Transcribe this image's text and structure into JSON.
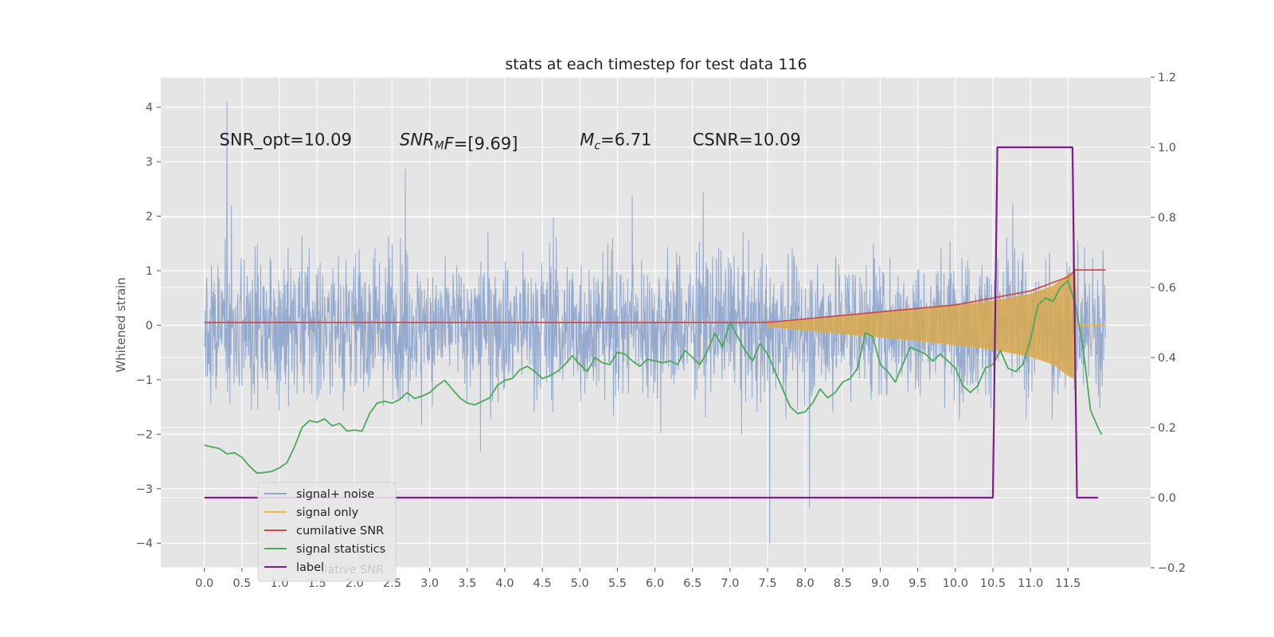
{
  "chart_data": {
    "type": "line",
    "title": "stats at each timestep for test data 116",
    "ylabel": "Whitened strain",
    "ylabel_right": "",
    "xlim": [
      -0.58,
      12.6
    ],
    "ylim": [
      -4.45,
      4.55
    ],
    "ylim_right": [
      -0.2,
      1.2
    ],
    "x_ticks": [
      "0.0",
      "0.5",
      "1.0",
      "1.5",
      "2.0",
      "2.5",
      "3.0",
      "3.5",
      "4.0",
      "4.5",
      "5.0",
      "5.5",
      "6.0",
      "6.5",
      "7.0",
      "7.5",
      "8.0",
      "8.5",
      "9.0",
      "9.5",
      "10.0",
      "10.5",
      "11.0",
      "11.5"
    ],
    "y_ticks": [
      "4",
      "3",
      "2",
      "1",
      "0",
      "−1",
      "−2",
      "−3",
      "−4"
    ],
    "y_ticks_right": [
      "1.2",
      "1.0",
      "0.8",
      "0.6",
      "0.4",
      "0.2",
      "0.0",
      "−0.2"
    ],
    "grid": true,
    "legend_placement": "lower-left",
    "annotations": [
      {
        "text": "SNR_opt=10.09",
        "x": 0.2,
        "y": 3.3
      },
      {
        "text": "SNR_M F=[9.69]",
        "x": 2.6,
        "y": 3.3
      },
      {
        "text": "M_c=6.71",
        "x": 5.0,
        "y": 3.3
      },
      {
        "text": "CSNR=10.09",
        "x": 6.5,
        "y": 3.3
      }
    ],
    "series": [
      {
        "name": "signal+ noise",
        "color": "#8fa5cc",
        "description": "whitened noise, amplitude ~±2 with spikes to ±4",
        "approx_envelope": {
          "upper": 1.9,
          "lower": -1.9,
          "max": 4.1,
          "min": -4.0
        }
      },
      {
        "name": "signal only",
        "color": "#e8b84a",
        "envelope_x": [
          7.5,
          8.0,
          8.5,
          9.0,
          9.5,
          10.0,
          10.5,
          11.0,
          11.3,
          11.5,
          11.6
        ],
        "envelope_amp": [
          0.02,
          0.06,
          0.1,
          0.14,
          0.18,
          0.23,
          0.28,
          0.36,
          0.45,
          0.58,
          0.62
        ]
      },
      {
        "name": "cumilative SNR",
        "color": "#cc4c4c",
        "axis": "right",
        "x": [
          0.0,
          7.5,
          8.0,
          8.5,
          9.0,
          9.5,
          10.0,
          10.5,
          11.0,
          11.5,
          11.6,
          12.0
        ],
        "y": [
          0.5,
          0.5,
          0.51,
          0.52,
          0.53,
          0.54,
          0.55,
          0.57,
          0.59,
          0.63,
          0.65,
          0.65
        ]
      },
      {
        "name": "signal statistics",
        "color": "#4aa95c",
        "axis": "right",
        "x": [
          0.0,
          0.1,
          0.2,
          0.3,
          0.4,
          0.5,
          0.6,
          0.7,
          0.8,
          0.9,
          1.0,
          1.1,
          1.2,
          1.3,
          1.4,
          1.5,
          1.6,
          1.7,
          1.8,
          1.9,
          2.0,
          2.1,
          2.2,
          2.3,
          2.4,
          2.5,
          2.6,
          2.7,
          2.8,
          2.9,
          3.0,
          3.1,
          3.2,
          3.3,
          3.4,
          3.5,
          3.6,
          3.7,
          3.8,
          3.9,
          4.0,
          4.1,
          4.2,
          4.3,
          4.4,
          4.5,
          4.6,
          4.7,
          4.8,
          4.9,
          5.0,
          5.1,
          5.2,
          5.3,
          5.4,
          5.5,
          5.6,
          5.7,
          5.8,
          5.9,
          6.0,
          6.1,
          6.2,
          6.3,
          6.4,
          6.5,
          6.6,
          6.7,
          6.8,
          6.9,
          7.0,
          7.1,
          7.2,
          7.3,
          7.4,
          7.5,
          7.6,
          7.7,
          7.8,
          7.9,
          8.0,
          8.1,
          8.2,
          8.3,
          8.4,
          8.5,
          8.6,
          8.7,
          8.8,
          8.9,
          9.0,
          9.1,
          9.2,
          9.3,
          9.4,
          9.5,
          9.6,
          9.7,
          9.8,
          9.9,
          10.0,
          10.1,
          10.2,
          10.3,
          10.4,
          10.5,
          10.6,
          10.7,
          10.8,
          10.9,
          11.0,
          11.1,
          11.2,
          11.3,
          11.4,
          11.5,
          11.6,
          11.7,
          11.8,
          11.9,
          11.95
        ],
        "y": [
          0.15,
          0.145,
          0.14,
          0.125,
          0.128,
          0.115,
          0.09,
          0.07,
          0.072,
          0.075,
          0.085,
          0.1,
          0.145,
          0.2,
          0.22,
          0.215,
          0.225,
          0.205,
          0.212,
          0.19,
          0.193,
          0.19,
          0.24,
          0.27,
          0.275,
          0.27,
          0.28,
          0.3,
          0.283,
          0.29,
          0.3,
          0.32,
          0.335,
          0.31,
          0.285,
          0.27,
          0.265,
          0.275,
          0.285,
          0.32,
          0.335,
          0.34,
          0.365,
          0.375,
          0.36,
          0.34,
          0.348,
          0.36,
          0.38,
          0.405,
          0.38,
          0.36,
          0.4,
          0.385,
          0.38,
          0.415,
          0.41,
          0.39,
          0.375,
          0.395,
          0.39,
          0.385,
          0.39,
          0.38,
          0.42,
          0.4,
          0.38,
          0.42,
          0.47,
          0.43,
          0.5,
          0.46,
          0.42,
          0.39,
          0.44,
          0.41,
          0.36,
          0.31,
          0.26,
          0.24,
          0.245,
          0.27,
          0.31,
          0.285,
          0.3,
          0.33,
          0.34,
          0.37,
          0.47,
          0.46,
          0.38,
          0.36,
          0.33,
          0.38,
          0.43,
          0.42,
          0.41,
          0.39,
          0.41,
          0.39,
          0.37,
          0.32,
          0.3,
          0.32,
          0.37,
          0.38,
          0.42,
          0.37,
          0.36,
          0.38,
          0.45,
          0.55,
          0.57,
          0.56,
          0.6,
          0.62,
          0.55,
          0.43,
          0.25,
          0.2,
          0.18
        ]
      },
      {
        "name": "label",
        "color": "#7b1f86",
        "axis": "right",
        "x": [
          0.0,
          10.5,
          10.56,
          11.56,
          11.62,
          11.9
        ],
        "y": [
          0.0,
          0.0,
          1.0,
          1.0,
          0.0,
          0.0
        ]
      }
    ],
    "legend_ghost_text": "cumilative SNR"
  }
}
